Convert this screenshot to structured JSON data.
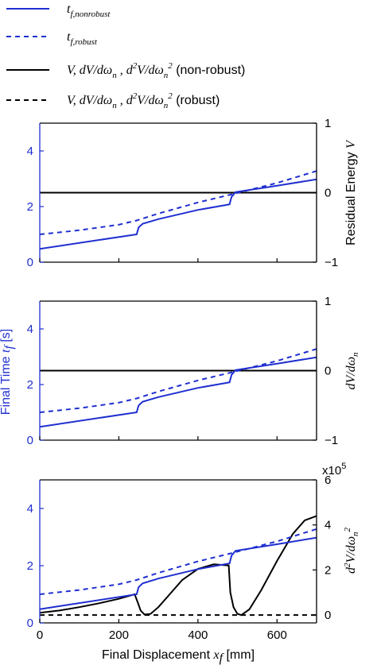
{
  "chart_data": {
    "type": "line",
    "legend": {
      "placement": "top",
      "entries": [
        {
          "label": "t_f,nonrobust",
          "main": "t",
          "sub": "f,nonrobust",
          "color": "#1f2fd0",
          "dashed": false
        },
        {
          "label": "t_f,robust",
          "main": "t",
          "sub": "f,robust",
          "color": "#1f2fd0",
          "dashed": true
        },
        {
          "label": "V, dV/dωn , d2V/dωn2 (non-robust)",
          "math": "V,  dV/dω",
          "math_sub": "n",
          "mid": " ,  d",
          "mid2": "V/dω",
          "tail": " (non-robust)",
          "color": "#000000",
          "dashed": false
        },
        {
          "label": "V, dV/dωn , d2V/dωn2 (robust)",
          "math": "V,  dV/dω",
          "math_sub": "n",
          "mid": " ,  d",
          "mid2": "V/dω",
          "tail": " (robust)",
          "color": "#000000",
          "dashed": true
        }
      ]
    },
    "xlabel": "Final Displacement x_f [mm]",
    "xlabel_text": "Final Displacement ",
    "xlabel_math": "x",
    "xlabel_sub": "f",
    "xlabel_unit": " [mm]",
    "x_ticks": [
      0,
      200,
      400,
      600
    ],
    "xlim": [
      0,
      700
    ],
    "shared_left_axis": {
      "label": "Final Time t_f [s]",
      "label_text": "Final Time ",
      "label_math": "t",
      "label_sub": "f",
      "label_unit": " [s]",
      "ylim": [
        0,
        5
      ],
      "ticks": [
        0,
        2,
        4
      ]
    },
    "panels": [
      {
        "right_label": "Residual Energy V",
        "right_text": "Residual Energy ",
        "right_math": "V",
        "right_ylim": [
          -1,
          1
        ],
        "right_ticks": [
          -1,
          0,
          1
        ],
        "t_nonrobust": {
          "x": [
            0,
            245,
            250,
            260,
            300,
            400,
            480,
            485,
            495,
            600,
            700
          ],
          "y": [
            0.48,
            1.0,
            1.25,
            1.38,
            1.55,
            1.88,
            2.08,
            2.35,
            2.52,
            2.75,
            2.98
          ]
        },
        "t_robust": {
          "x": [
            0,
            100,
            200,
            245,
            300,
            400,
            480,
            600,
            700
          ],
          "y": [
            1.0,
            1.15,
            1.35,
            1.5,
            1.75,
            2.15,
            2.42,
            2.85,
            3.28
          ]
        },
        "V_nonrobust": {
          "x": [
            0,
            700
          ],
          "y": [
            0,
            0
          ]
        },
        "V_robust": {
          "x": [
            0,
            700
          ],
          "y": [
            0,
            0
          ]
        }
      },
      {
        "right_label": "dV/dωn",
        "right_math": "dV/dω",
        "right_sub": "n",
        "right_ylim": [
          -1,
          1
        ],
        "right_ticks": [
          -1,
          0,
          1
        ],
        "t_nonrobust": {
          "x": [
            0,
            245,
            250,
            260,
            300,
            400,
            480,
            485,
            495,
            600,
            700
          ],
          "y": [
            0.48,
            1.0,
            1.25,
            1.38,
            1.55,
            1.88,
            2.08,
            2.35,
            2.52,
            2.75,
            2.98
          ]
        },
        "t_robust": {
          "x": [
            0,
            100,
            200,
            245,
            300,
            400,
            480,
            600,
            700
          ],
          "y": [
            1.0,
            1.15,
            1.35,
            1.5,
            1.75,
            2.15,
            2.42,
            2.85,
            3.28
          ]
        },
        "V_nonrobust": {
          "x": [
            0,
            700
          ],
          "y": [
            0,
            0
          ]
        },
        "V_robust": {
          "x": [
            0,
            700
          ],
          "y": [
            0,
            0
          ]
        }
      },
      {
        "right_label": "d2V/dωn2",
        "right_math_a": "d",
        "right_math_b": "V/dω",
        "right_sub": "n",
        "right_ylim": [
          -0.35,
          6
        ],
        "right_ticks": [
          0,
          2,
          4,
          6
        ],
        "right_multiplier": "x10",
        "right_multiplier_exp": "5",
        "t_nonrobust": {
          "x": [
            0,
            245,
            250,
            260,
            300,
            400,
            480,
            485,
            495,
            600,
            700
          ],
          "y": [
            0.48,
            1.0,
            1.25,
            1.38,
            1.55,
            1.88,
            2.08,
            2.35,
            2.52,
            2.75,
            2.98
          ]
        },
        "t_robust": {
          "x": [
            0,
            100,
            200,
            245,
            300,
            400,
            480,
            600,
            700
          ],
          "y": [
            1.0,
            1.15,
            1.35,
            1.5,
            1.75,
            2.15,
            2.42,
            2.85,
            3.28
          ]
        },
        "V_nonrobust": {
          "x": [
            0,
            50,
            100,
            150,
            200,
            240,
            248,
            255,
            265,
            280,
            300,
            330,
            360,
            400,
            440,
            478,
            482,
            490,
            500,
            510,
            530,
            560,
            600,
            640,
            670,
            700
          ],
          "y": [
            0.1,
            0.2,
            0.35,
            0.52,
            0.72,
            0.92,
            0.55,
            0.2,
            0.02,
            0.05,
            0.35,
            0.95,
            1.55,
            2.05,
            2.25,
            2.2,
            1.0,
            0.35,
            0.05,
            0.0,
            0.25,
            1.1,
            2.4,
            3.6,
            4.2,
            4.4
          ]
        },
        "V_robust": {
          "x": [
            0,
            700
          ],
          "y": [
            0,
            0
          ]
        }
      }
    ],
    "colors": {
      "blue": "#1f2fd0",
      "black": "#000000"
    },
    "grid": false
  }
}
